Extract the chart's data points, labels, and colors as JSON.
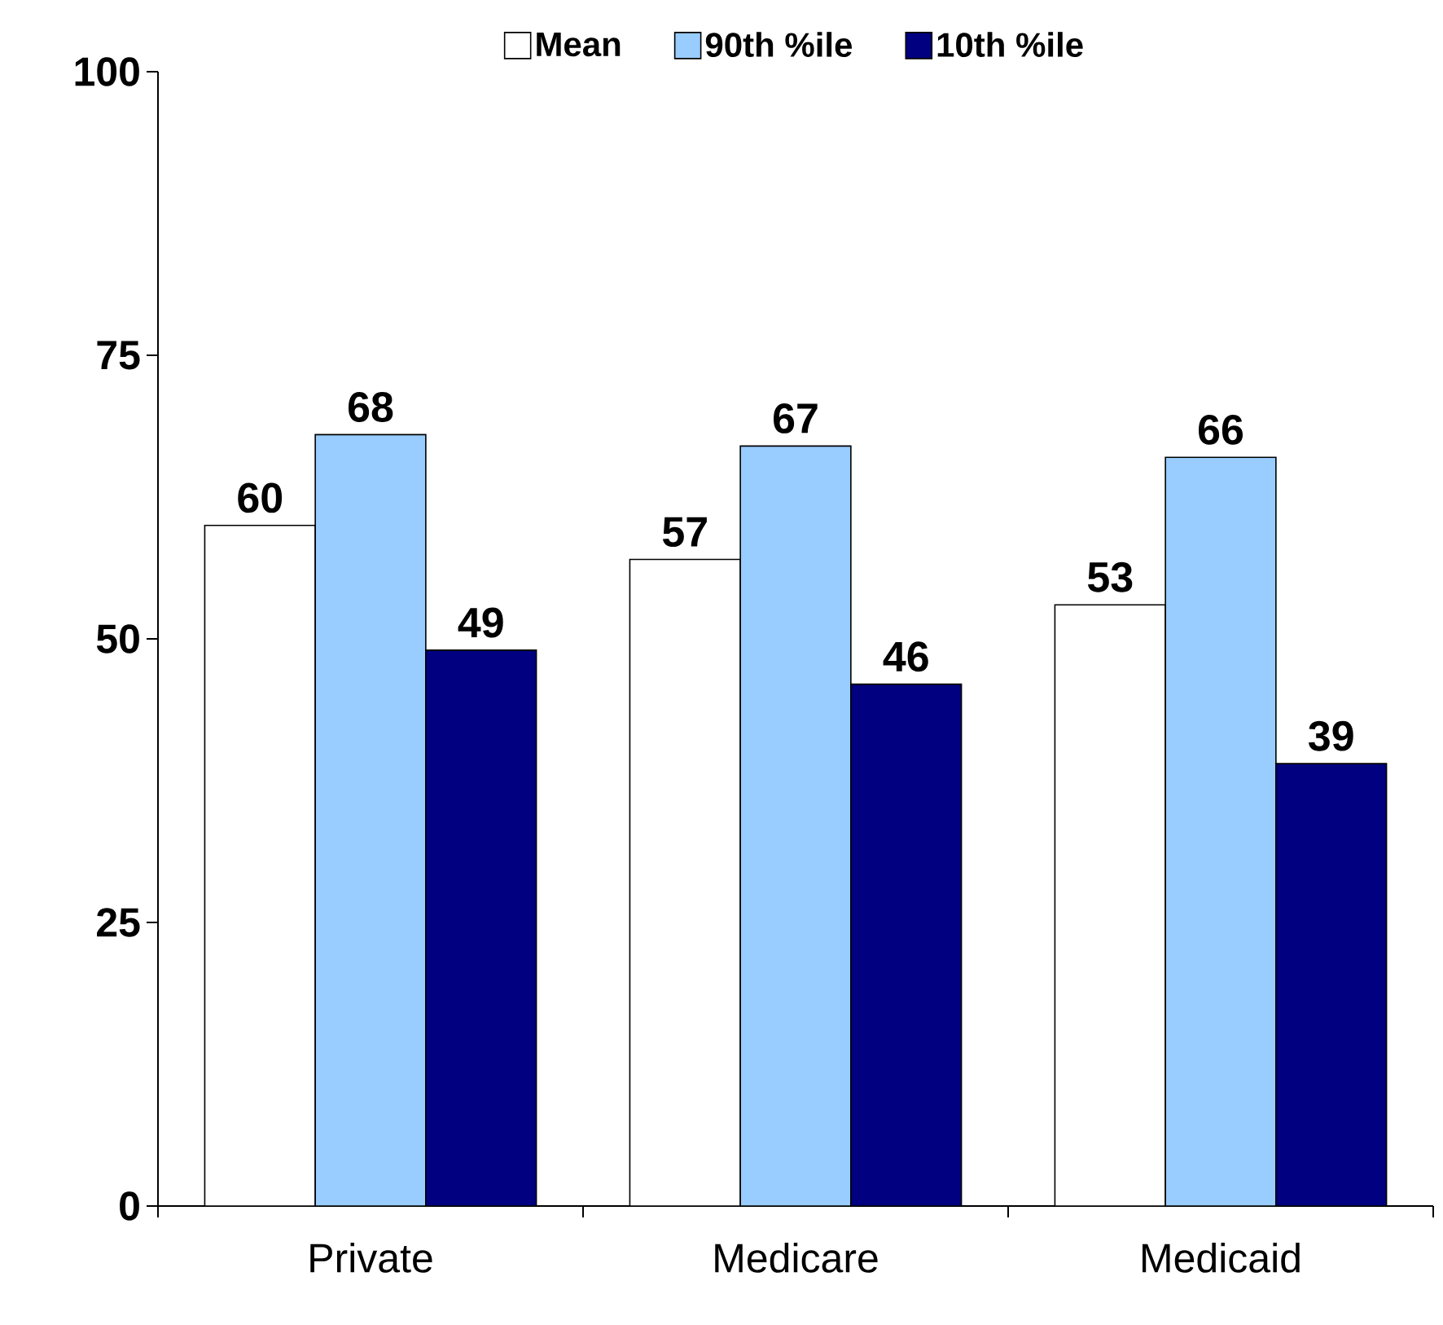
{
  "chart_data": {
    "type": "bar",
    "categories": [
      "Private",
      "Medicare",
      "Medicaid"
    ],
    "series": [
      {
        "name": "Mean",
        "color": "#ffffff",
        "values": [
          60,
          57,
          53
        ]
      },
      {
        "name": "90th %ile",
        "color": "#99ccff",
        "values": [
          68,
          67,
          66
        ]
      },
      {
        "name": "10th %ile",
        "color": "#000080",
        "values": [
          49,
          46,
          39
        ]
      }
    ],
    "ylim": [
      0,
      100
    ],
    "yticks": [
      0,
      25,
      50,
      75,
      100
    ],
    "data_labels": true,
    "legend": "top",
    "grid": false
  }
}
